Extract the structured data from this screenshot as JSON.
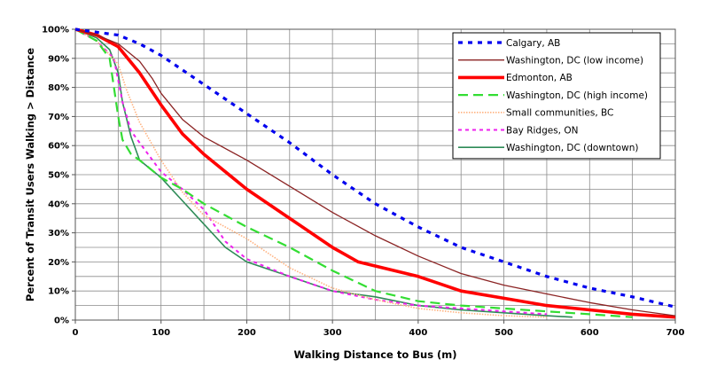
{
  "chart_data": {
    "type": "line",
    "title": "",
    "xlabel": "Walking Distance to Bus (m)",
    "ylabel": "Percent of Transit Users Walking > Distance",
    "xlim": [
      0,
      700
    ],
    "ylim": [
      0,
      100
    ],
    "x_ticks": [
      0,
      100,
      200,
      300,
      400,
      500,
      600,
      700
    ],
    "y_ticks": [
      0,
      10,
      20,
      30,
      40,
      50,
      60,
      70,
      80,
      90,
      100
    ],
    "x_tick_labels": [
      "0",
      "100",
      "200",
      "300",
      "400",
      "500",
      "600",
      "700"
    ],
    "y_tick_labels": [
      "0%",
      "10%",
      "20%",
      "30%",
      "40%",
      "50%",
      "60%",
      "70%",
      "80%",
      "90%",
      "100%"
    ],
    "grid": true,
    "legend_position": "top-right",
    "series": [
      {
        "name": "Calgary, AB",
        "color": "#0000ee",
        "dash": "dotted-thick",
        "points": [
          [
            0,
            100
          ],
          [
            25,
            99
          ],
          [
            50,
            98
          ],
          [
            75,
            95
          ],
          [
            100,
            91
          ],
          [
            125,
            86
          ],
          [
            150,
            81
          ],
          [
            200,
            71
          ],
          [
            250,
            61
          ],
          [
            300,
            50
          ],
          [
            350,
            40
          ],
          [
            400,
            32
          ],
          [
            450,
            25
          ],
          [
            500,
            20
          ],
          [
            550,
            15
          ],
          [
            600,
            11
          ],
          [
            650,
            8
          ],
          [
            700,
            4.5
          ]
        ]
      },
      {
        "name": "Washington, DC (low income)",
        "color": "#8b2323",
        "dash": "solid-thin",
        "points": [
          [
            0,
            100
          ],
          [
            25,
            98
          ],
          [
            50,
            95
          ],
          [
            75,
            89
          ],
          [
            90,
            83
          ],
          [
            100,
            78
          ],
          [
            125,
            69
          ],
          [
            150,
            63
          ],
          [
            200,
            55
          ],
          [
            250,
            46
          ],
          [
            300,
            37
          ],
          [
            350,
            29
          ],
          [
            400,
            22
          ],
          [
            450,
            16
          ],
          [
            500,
            12
          ],
          [
            550,
            9
          ],
          [
            600,
            6
          ],
          [
            650,
            3.5
          ],
          [
            700,
            1.5
          ]
        ]
      },
      {
        "name": "Edmonton, AB",
        "color": "#ff0000",
        "dash": "solid-thick",
        "points": [
          [
            0,
            100
          ],
          [
            25,
            98
          ],
          [
            50,
            94
          ],
          [
            75,
            85
          ],
          [
            100,
            74
          ],
          [
            125,
            64
          ],
          [
            150,
            57
          ],
          [
            200,
            45
          ],
          [
            250,
            35
          ],
          [
            300,
            25
          ],
          [
            330,
            20
          ],
          [
            400,
            15
          ],
          [
            450,
            10
          ],
          [
            500,
            7.5
          ],
          [
            550,
            5
          ],
          [
            600,
            3.5
          ],
          [
            650,
            2
          ],
          [
            700,
            1
          ]
        ]
      },
      {
        "name": "Washington, DC (high income)",
        "color": "#33dd33",
        "dash": "dashed",
        "points": [
          [
            0,
            100
          ],
          [
            25,
            96
          ],
          [
            40,
            90
          ],
          [
            50,
            70
          ],
          [
            55,
            62
          ],
          [
            65,
            57
          ],
          [
            75,
            55
          ],
          [
            100,
            49
          ],
          [
            125,
            45
          ],
          [
            150,
            40
          ],
          [
            200,
            32
          ],
          [
            250,
            25
          ],
          [
            300,
            17
          ],
          [
            350,
            10
          ],
          [
            400,
            6.5
          ],
          [
            450,
            5
          ],
          [
            500,
            4
          ],
          [
            550,
            3
          ],
          [
            600,
            2
          ],
          [
            650,
            1
          ]
        ]
      },
      {
        "name": "Small communities, BC",
        "color": "#ffb27f",
        "dash": "dotted-fine",
        "points": [
          [
            0,
            100
          ],
          [
            25,
            96
          ],
          [
            50,
            88
          ],
          [
            60,
            79
          ],
          [
            75,
            68
          ],
          [
            100,
            55
          ],
          [
            125,
            44
          ],
          [
            150,
            36
          ],
          [
            200,
            28
          ],
          [
            250,
            18
          ],
          [
            300,
            11
          ],
          [
            350,
            7
          ],
          [
            400,
            4
          ],
          [
            450,
            2.5
          ],
          [
            500,
            1.5
          ],
          [
            550,
            1
          ]
        ]
      },
      {
        "name": "Bay Ridges, ON",
        "color": "#ee22ee",
        "dash": "dashed-short",
        "points": [
          [
            0,
            100
          ],
          [
            25,
            96
          ],
          [
            45,
            90
          ],
          [
            55,
            75
          ],
          [
            65,
            65
          ],
          [
            75,
            61
          ],
          [
            100,
            51
          ],
          [
            125,
            45
          ],
          [
            150,
            38
          ],
          [
            175,
            27
          ],
          [
            200,
            21
          ],
          [
            250,
            15
          ],
          [
            300,
            10
          ],
          [
            350,
            7
          ],
          [
            400,
            5
          ],
          [
            450,
            4
          ],
          [
            500,
            3
          ],
          [
            550,
            2
          ]
        ]
      },
      {
        "name": "Washington, DC (downtown)",
        "color": "#2e8b57",
        "dash": "solid-medium",
        "points": [
          [
            0,
            100
          ],
          [
            25,
            97
          ],
          [
            40,
            93
          ],
          [
            50,
            85
          ],
          [
            55,
            75
          ],
          [
            65,
            63
          ],
          [
            75,
            55
          ],
          [
            100,
            49
          ],
          [
            125,
            41
          ],
          [
            150,
            33
          ],
          [
            175,
            25
          ],
          [
            200,
            20
          ],
          [
            250,
            15
          ],
          [
            300,
            10
          ],
          [
            350,
            8
          ],
          [
            400,
            5
          ],
          [
            450,
            3.5
          ],
          [
            500,
            2.5
          ],
          [
            550,
            1.5
          ],
          [
            580,
            1
          ]
        ]
      }
    ]
  }
}
